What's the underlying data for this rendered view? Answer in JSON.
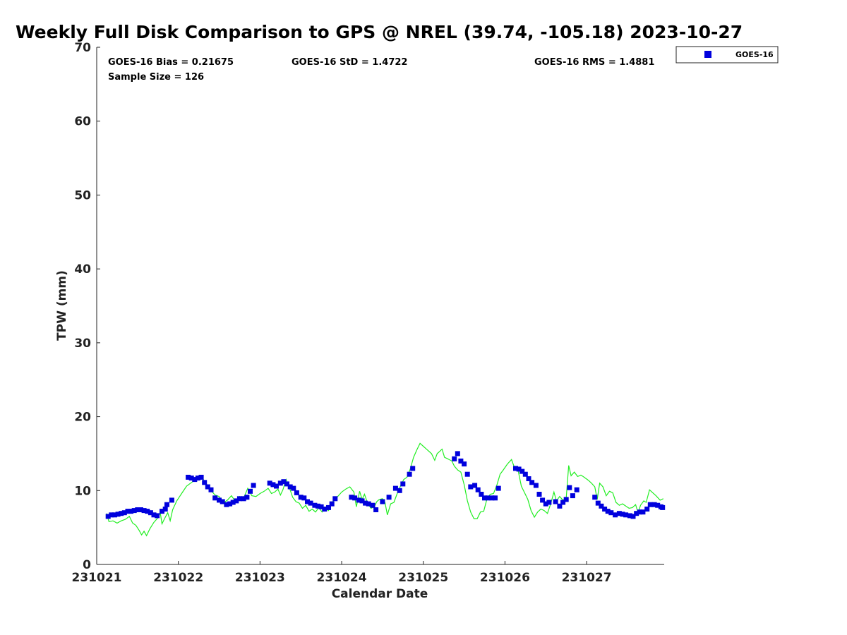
{
  "chart_data": {
    "type": "scatter+line",
    "title": "Weekly Full Disk Comparison to GPS @ NREL (39.74, -105.18) 2023-10-27",
    "xlabel": "Calendar Date",
    "ylabel": "TPW (mm)",
    "x_units": "days since 231021 00Z",
    "xlim": [
      0,
      6.95
    ],
    "ylim": [
      0,
      70
    ],
    "xticks": [
      0,
      1,
      2,
      3,
      4,
      5,
      6
    ],
    "xtick_labels": [
      "231021",
      "231022",
      "231023",
      "231024",
      "231025",
      "231026",
      "231027"
    ],
    "yticks": [
      0,
      10,
      20,
      30,
      40,
      50,
      60,
      70
    ],
    "ytick_labels": [
      "0",
      "10",
      "20",
      "30",
      "40",
      "50",
      "60",
      "70"
    ],
    "stats": {
      "bias": "GOES-16 Bias = 0.21675",
      "std": "GOES-16 StD = 1.4722",
      "rms": "GOES-16 RMS = 1.4881",
      "sample": "Sample Size = 126"
    },
    "legend": {
      "position": "top-right outside",
      "entries": [
        "GOES-16"
      ]
    },
    "colors": {
      "goes": "#0000dd",
      "gps": "#22ee22"
    },
    "series": [
      {
        "name": "GOES-16",
        "style": "square-markers",
        "points": [
          [
            0.14,
            6.5
          ],
          [
            0.18,
            6.7
          ],
          [
            0.22,
            6.7
          ],
          [
            0.26,
            6.8
          ],
          [
            0.3,
            6.9
          ],
          [
            0.34,
            7.0
          ],
          [
            0.38,
            7.2
          ],
          [
            0.42,
            7.2
          ],
          [
            0.46,
            7.3
          ],
          [
            0.5,
            7.4
          ],
          [
            0.54,
            7.4
          ],
          [
            0.58,
            7.3
          ],
          [
            0.62,
            7.2
          ],
          [
            0.66,
            7.0
          ],
          [
            0.7,
            6.7
          ],
          [
            0.74,
            6.6
          ],
          [
            0.8,
            7.2
          ],
          [
            0.84,
            7.5
          ],
          [
            0.86,
            8.1
          ],
          [
            0.92,
            8.7
          ],
          [
            1.12,
            11.8
          ],
          [
            1.16,
            11.7
          ],
          [
            1.2,
            11.5
          ],
          [
            1.24,
            11.7
          ],
          [
            1.28,
            11.8
          ],
          [
            1.32,
            11.1
          ],
          [
            1.36,
            10.5
          ],
          [
            1.4,
            10.1
          ],
          [
            1.45,
            9.0
          ],
          [
            1.5,
            8.7
          ],
          [
            1.54,
            8.5
          ],
          [
            1.59,
            8.1
          ],
          [
            1.63,
            8.2
          ],
          [
            1.67,
            8.4
          ],
          [
            1.71,
            8.6
          ],
          [
            1.75,
            8.9
          ],
          [
            1.8,
            8.9
          ],
          [
            1.84,
            9.1
          ],
          [
            1.88,
            9.9
          ],
          [
            1.92,
            10.7
          ],
          [
            2.12,
            11.0
          ],
          [
            2.16,
            10.8
          ],
          [
            2.2,
            10.6
          ],
          [
            2.25,
            11.0
          ],
          [
            2.29,
            11.2
          ],
          [
            2.33,
            10.9
          ],
          [
            2.37,
            10.5
          ],
          [
            2.41,
            10.3
          ],
          [
            2.45,
            9.7
          ],
          [
            2.5,
            9.1
          ],
          [
            2.54,
            9.0
          ],
          [
            2.58,
            8.5
          ],
          [
            2.62,
            8.3
          ],
          [
            2.67,
            8.0
          ],
          [
            2.71,
            7.9
          ],
          [
            2.75,
            7.8
          ],
          [
            2.79,
            7.5
          ],
          [
            2.84,
            7.7
          ],
          [
            2.88,
            8.2
          ],
          [
            2.92,
            8.9
          ],
          [
            3.12,
            9.1
          ],
          [
            3.16,
            9.0
          ],
          [
            3.21,
            8.7
          ],
          [
            3.25,
            8.6
          ],
          [
            3.29,
            8.3
          ],
          [
            3.33,
            8.2
          ],
          [
            3.38,
            8.0
          ],
          [
            3.42,
            7.4
          ],
          [
            3.5,
            8.5
          ],
          [
            3.58,
            9.1
          ],
          [
            3.66,
            10.3
          ],
          [
            3.71,
            10.0
          ],
          [
            3.75,
            10.9
          ],
          [
            3.83,
            12.2
          ],
          [
            3.87,
            13.0
          ],
          [
            4.38,
            14.3
          ],
          [
            4.42,
            15.0
          ],
          [
            4.46,
            14.0
          ],
          [
            4.5,
            13.6
          ],
          [
            4.54,
            12.2
          ],
          [
            4.58,
            10.5
          ],
          [
            4.63,
            10.7
          ],
          [
            4.67,
            10.1
          ],
          [
            4.71,
            9.5
          ],
          [
            4.75,
            9.0
          ],
          [
            4.79,
            9.0
          ],
          [
            4.84,
            9.0
          ],
          [
            4.88,
            9.0
          ],
          [
            4.92,
            10.3
          ],
          [
            5.13,
            13.0
          ],
          [
            5.17,
            12.9
          ],
          [
            5.21,
            12.6
          ],
          [
            5.25,
            12.2
          ],
          [
            5.29,
            11.6
          ],
          [
            5.33,
            11.1
          ],
          [
            5.38,
            10.7
          ],
          [
            5.42,
            9.5
          ],
          [
            5.46,
            8.7
          ],
          [
            5.5,
            8.2
          ],
          [
            5.54,
            8.4
          ],
          [
            5.62,
            8.5
          ],
          [
            5.67,
            7.9
          ],
          [
            5.71,
            8.4
          ],
          [
            5.75,
            8.8
          ],
          [
            5.79,
            10.4
          ],
          [
            5.83,
            9.3
          ],
          [
            5.88,
            10.1
          ],
          [
            6.1,
            9.1
          ],
          [
            6.14,
            8.3
          ],
          [
            6.18,
            7.9
          ],
          [
            6.22,
            7.5
          ],
          [
            6.26,
            7.2
          ],
          [
            6.3,
            7.0
          ],
          [
            6.35,
            6.7
          ],
          [
            6.4,
            6.9
          ],
          [
            6.44,
            6.8
          ],
          [
            6.48,
            6.7
          ],
          [
            6.53,
            6.6
          ],
          [
            6.57,
            6.5
          ],
          [
            6.61,
            6.9
          ],
          [
            6.65,
            7.1
          ],
          [
            6.69,
            7.1
          ],
          [
            6.74,
            7.5
          ],
          [
            6.78,
            8.1
          ],
          [
            6.83,
            8.1
          ],
          [
            6.87,
            8.0
          ],
          [
            6.91,
            7.8
          ],
          [
            6.93,
            7.7
          ]
        ]
      },
      {
        "name": "GPS",
        "style": "line",
        "points": [
          [
            0.12,
            6.9
          ],
          [
            0.15,
            5.8
          ],
          [
            0.2,
            5.9
          ],
          [
            0.25,
            5.6
          ],
          [
            0.3,
            5.9
          ],
          [
            0.35,
            6.1
          ],
          [
            0.4,
            6.5
          ],
          [
            0.44,
            5.6
          ],
          [
            0.48,
            5.3
          ],
          [
            0.52,
            4.6
          ],
          [
            0.55,
            4.0
          ],
          [
            0.58,
            4.5
          ],
          [
            0.61,
            3.9
          ],
          [
            0.65,
            4.8
          ],
          [
            0.7,
            5.7
          ],
          [
            0.74,
            6.2
          ],
          [
            0.78,
            6.9
          ],
          [
            0.8,
            5.5
          ],
          [
            0.84,
            6.4
          ],
          [
            0.87,
            7.0
          ],
          [
            0.9,
            5.9
          ],
          [
            0.93,
            7.4
          ],
          [
            0.98,
            8.6
          ],
          [
            1.04,
            9.6
          ],
          [
            1.1,
            10.6
          ],
          [
            1.15,
            11.0
          ],
          [
            1.2,
            11.4
          ],
          [
            1.25,
            12.0
          ],
          [
            1.3,
            11.6
          ],
          [
            1.35,
            10.8
          ],
          [
            1.4,
            10.0
          ],
          [
            1.45,
            9.4
          ],
          [
            1.5,
            9.2
          ],
          [
            1.55,
            8.3
          ],
          [
            1.6,
            8.7
          ],
          [
            1.65,
            9.3
          ],
          [
            1.7,
            8.5
          ],
          [
            1.75,
            9.2
          ],
          [
            1.8,
            9.0
          ],
          [
            1.85,
            10.3
          ],
          [
            1.9,
            9.3
          ],
          [
            1.95,
            9.2
          ],
          [
            2.0,
            9.6
          ],
          [
            2.05,
            9.9
          ],
          [
            2.1,
            10.3
          ],
          [
            2.14,
            9.6
          ],
          [
            2.18,
            9.8
          ],
          [
            2.22,
            10.2
          ],
          [
            2.25,
            9.4
          ],
          [
            2.28,
            10.1
          ],
          [
            2.32,
            11.5
          ],
          [
            2.36,
            10.4
          ],
          [
            2.4,
            9.1
          ],
          [
            2.44,
            8.5
          ],
          [
            2.48,
            8.3
          ],
          [
            2.52,
            7.6
          ],
          [
            2.56,
            8.0
          ],
          [
            2.6,
            7.2
          ],
          [
            2.64,
            7.5
          ],
          [
            2.68,
            7.1
          ],
          [
            2.72,
            7.7
          ],
          [
            2.76,
            7.1
          ],
          [
            2.8,
            7.6
          ],
          [
            2.84,
            7.3
          ],
          [
            2.88,
            8.4
          ],
          [
            2.92,
            8.8
          ],
          [
            2.96,
            9.3
          ],
          [
            3.0,
            9.8
          ],
          [
            3.05,
            10.2
          ],
          [
            3.1,
            10.5
          ],
          [
            3.15,
            9.8
          ],
          [
            3.18,
            7.8
          ],
          [
            3.22,
            9.9
          ],
          [
            3.25,
            8.8
          ],
          [
            3.28,
            9.5
          ],
          [
            3.32,
            8.2
          ],
          [
            3.36,
            7.6
          ],
          [
            3.4,
            7.8
          ],
          [
            3.43,
            8.5
          ],
          [
            3.46,
            8.8
          ],
          [
            3.5,
            8.9
          ],
          [
            3.53,
            8.4
          ],
          [
            3.56,
            6.7
          ],
          [
            3.6,
            8.2
          ],
          [
            3.64,
            8.4
          ],
          [
            3.68,
            9.6
          ],
          [
            3.72,
            10.6
          ],
          [
            3.76,
            11.5
          ],
          [
            3.8,
            11.8
          ],
          [
            3.84,
            12.9
          ],
          [
            3.88,
            14.5
          ],
          [
            3.92,
            15.5
          ],
          [
            3.96,
            16.4
          ],
          [
            4.0,
            16.0
          ],
          [
            4.05,
            15.5
          ],
          [
            4.1,
            15.0
          ],
          [
            4.14,
            14.1
          ],
          [
            4.17,
            15.0
          ],
          [
            4.2,
            15.3
          ],
          [
            4.23,
            15.6
          ],
          [
            4.26,
            14.5
          ],
          [
            4.3,
            14.3
          ],
          [
            4.35,
            14.0
          ],
          [
            4.38,
            13.3
          ],
          [
            4.42,
            12.8
          ],
          [
            4.46,
            12.5
          ],
          [
            4.5,
            10.8
          ],
          [
            4.54,
            8.6
          ],
          [
            4.58,
            7.1
          ],
          [
            4.62,
            6.2
          ],
          [
            4.66,
            6.2
          ],
          [
            4.7,
            7.1
          ],
          [
            4.74,
            7.2
          ],
          [
            4.78,
            8.9
          ],
          [
            4.82,
            9.5
          ],
          [
            4.86,
            9.6
          ],
          [
            4.9,
            10.7
          ],
          [
            4.94,
            12.2
          ],
          [
            4.98,
            12.8
          ],
          [
            5.03,
            13.6
          ],
          [
            5.08,
            14.2
          ],
          [
            5.12,
            13.0
          ],
          [
            5.16,
            12.8
          ],
          [
            5.2,
            10.6
          ],
          [
            5.24,
            9.7
          ],
          [
            5.28,
            8.8
          ],
          [
            5.32,
            7.3
          ],
          [
            5.36,
            6.4
          ],
          [
            5.4,
            7.1
          ],
          [
            5.44,
            7.5
          ],
          [
            5.48,
            7.3
          ],
          [
            5.52,
            6.9
          ],
          [
            5.56,
            8.2
          ],
          [
            5.6,
            9.8
          ],
          [
            5.63,
            8.6
          ],
          [
            5.67,
            9.2
          ],
          [
            5.71,
            8.7
          ],
          [
            5.75,
            9.0
          ],
          [
            5.78,
            13.4
          ],
          [
            5.81,
            12.0
          ],
          [
            5.85,
            12.5
          ],
          [
            5.89,
            11.9
          ],
          [
            5.93,
            12.1
          ],
          [
            5.97,
            11.8
          ],
          [
            6.02,
            11.4
          ],
          [
            6.06,
            11.0
          ],
          [
            6.1,
            10.5
          ],
          [
            6.13,
            8.8
          ],
          [
            6.16,
            11.0
          ],
          [
            6.2,
            10.5
          ],
          [
            6.24,
            9.3
          ],
          [
            6.28,
            9.9
          ],
          [
            6.32,
            9.7
          ],
          [
            6.36,
            8.4
          ],
          [
            6.4,
            8.0
          ],
          [
            6.44,
            8.2
          ],
          [
            6.48,
            7.9
          ],
          [
            6.52,
            7.6
          ],
          [
            6.56,
            7.7
          ],
          [
            6.6,
            8.1
          ],
          [
            6.63,
            7.0
          ],
          [
            6.66,
            8.0
          ],
          [
            6.7,
            8.6
          ],
          [
            6.73,
            8.4
          ],
          [
            6.77,
            10.1
          ],
          [
            6.81,
            9.7
          ],
          [
            6.85,
            9.3
          ],
          [
            6.9,
            8.7
          ],
          [
            6.94,
            8.9
          ]
        ]
      }
    ]
  }
}
